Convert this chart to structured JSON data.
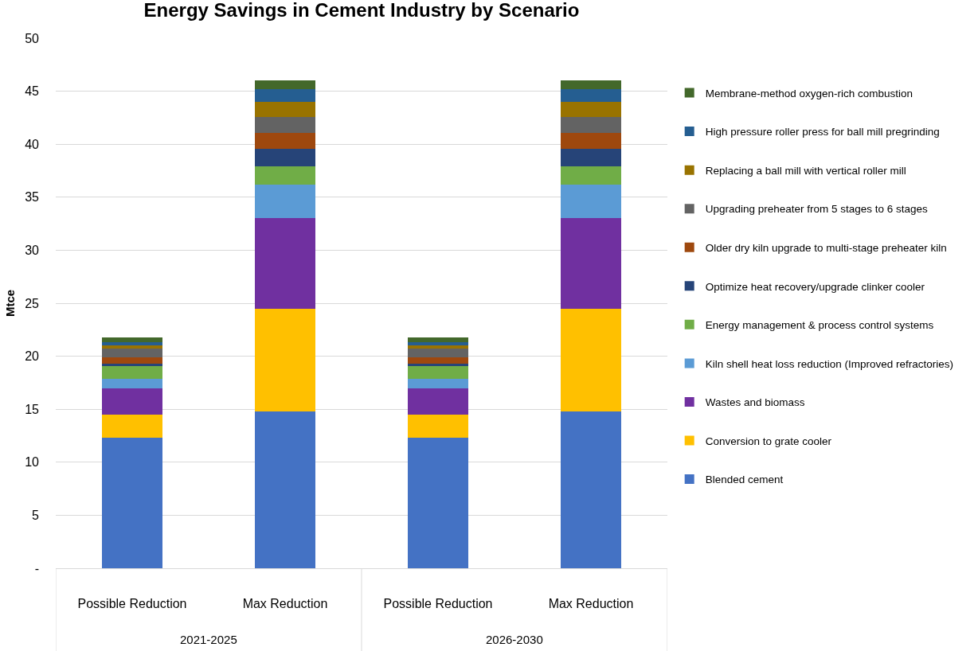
{
  "chart_data": {
    "type": "bar",
    "title": "Energy Savings in Cement Industry by Scenario",
    "ylabel": "Mtce",
    "categories": [
      "Possible Reduction",
      "Max Reduction",
      "Possible Reduction",
      "Max Reduction"
    ],
    "stacked": true,
    "ylim": [
      0,
      50
    ],
    "yticks": [
      {
        "value": 0,
        "label": "-"
      },
      5,
      10,
      15,
      20,
      25,
      30,
      35,
      40,
      45,
      50
    ],
    "grid": "y",
    "legend": "right",
    "annotations": [
      "2021-2025",
      "2026-2030"
    ],
    "series": [
      {
        "name": "Blended cement",
        "color": "#4472c4",
        "values": [
          12.3,
          14.8,
          12.3,
          14.8
        ]
      },
      {
        "name": "Conversion to grate cooler",
        "color": "#ffc000",
        "values": [
          2.2,
          9.7,
          2.2,
          9.7
        ]
      },
      {
        "name": "Wastes and biomass",
        "color": "#7030a0",
        "values": [
          2.5,
          8.5,
          2.5,
          8.5
        ]
      },
      {
        "name": "Kiln shell heat loss reduction (Improved refractories)",
        "color": "#5b9bd5",
        "values": [
          0.9,
          3.2,
          0.9,
          3.2
        ]
      },
      {
        "name": "Energy management & process control systems",
        "color": "#70ad47",
        "values": [
          1.2,
          1.7,
          1.2,
          1.7
        ]
      },
      {
        "name": "Optimize heat recovery/upgrade clinker cooler",
        "color": "#264478",
        "values": [
          0.2,
          1.7,
          0.2,
          1.7
        ]
      },
      {
        "name": "Older dry kiln upgrade to multi-stage preheater kiln",
        "color": "#9e480e",
        "values": [
          0.6,
          1.5,
          0.6,
          1.5
        ]
      },
      {
        "name": "Upgrading preheater from 5 stages to 6 stages",
        "color": "#636363",
        "values": [
          0.8,
          1.5,
          0.8,
          1.5
        ]
      },
      {
        "name": "Replacing a ball mill with vertical roller mill",
        "color": "#997300",
        "values": [
          0.3,
          1.4,
          0.3,
          1.4
        ]
      },
      {
        "name": "High pressure roller press for ball mill pregrinding",
        "color": "#255e91",
        "values": [
          0.3,
          1.2,
          0.3,
          1.2
        ]
      },
      {
        "name": "Membrane-method oxygen-rich combustion",
        "color": "#43682b",
        "values": [
          0.5,
          0.8,
          0.5,
          0.8
        ]
      }
    ]
  }
}
